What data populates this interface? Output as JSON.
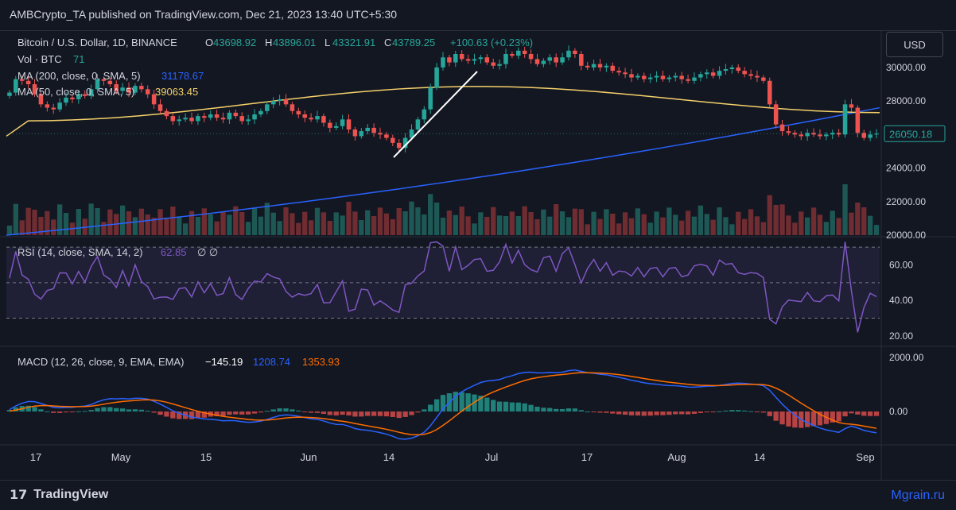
{
  "header": {
    "publisher_text": "AMBCrypto_TA published on TradingView.com, Dec 21, 2023 13:40 UTC+5:30"
  },
  "currency_button": "USD",
  "legend": {
    "symbol": "Bitcoin / U.S. Dollar, 1D, BINANCE",
    "o_label": "O",
    "o_value": "43698.92",
    "h_label": "H",
    "h_value": "43896.01",
    "l_label": "L",
    "l_value": "43321.91",
    "c_label": "C",
    "c_value": "43789.25",
    "change": "+100.63 (+0.23%)",
    "vol_label": "Vol · BTC",
    "vol_value": "71",
    "ma200_label": "MA (200, close, 0, SMA, 5)",
    "ma200_value": "31178.67",
    "ma50_label": "MA (50, close, 0, SMA, 5)",
    "ma50_value": "39063.45"
  },
  "rsi_legend": {
    "label": "RSI (14, close, SMA, 14, 2)",
    "value": "62.85",
    "extra": "∅ ∅"
  },
  "macd_legend": {
    "label": "MACD (12, 26, close, 9, EMA, EMA)",
    "hist": "−145.19",
    "macd": "1208.74",
    "signal": "1353.93"
  },
  "price_badge": "26050.18",
  "footer": {
    "brand": "TradingView",
    "watermark": "Mgrain.ru"
  },
  "colors": {
    "up": "#26a69a",
    "down": "#ef5350",
    "ma200": "#2962ff",
    "ma50": "#f5d16a",
    "rsi": "#7e57c2",
    "macd": "#2962ff",
    "signal": "#ff6d00"
  },
  "chart_data": [
    {
      "type": "candlestick",
      "title": "Bitcoin / U.S. Dollar, 1D, BINANCE",
      "x_ticks": [
        "17",
        "May",
        "15",
        "Jun",
        "14",
        "Jul",
        "17",
        "Aug",
        "14",
        "Sep"
      ],
      "y_ticks": [
        "20000.00",
        "22000.00",
        "24000.00",
        "26000.00",
        "28000.00",
        "30000.00"
      ],
      "ylim": [
        20000,
        30800
      ],
      "close_series": [
        28500,
        29300,
        29200,
        29000,
        28400,
        27800,
        27600,
        27500,
        27900,
        28200,
        28100,
        28400,
        28300,
        28700,
        29300,
        29200,
        29000,
        28600,
        28800,
        28500,
        28900,
        28700,
        28400,
        27800,
        27400,
        27100,
        26800,
        26900,
        27000,
        26800,
        27100,
        27000,
        27200,
        27000,
        26900,
        27300,
        27100,
        26800,
        26900,
        27200,
        27400,
        27800,
        28000,
        28100,
        27800,
        27400,
        27200,
        27000,
        26900,
        27100,
        26700,
        26400,
        26500,
        26900,
        26300,
        25900,
        26200,
        26400,
        26100,
        26000,
        25800,
        25500,
        25200,
        25800,
        26300,
        26900,
        27500,
        28800,
        30000,
        30600,
        30300,
        30800,
        30500,
        30400,
        30500,
        30600,
        30300,
        30100,
        30200,
        30800,
        30700,
        31000,
        30800,
        30500,
        30200,
        30400,
        30600,
        30300,
        30600,
        31000,
        30800,
        30100,
        30000,
        30200,
        30000,
        30100,
        29800,
        29700,
        29600,
        29400,
        29500,
        29300,
        29400,
        29500,
        29300,
        29400,
        29500,
        29300,
        29200,
        29400,
        29600,
        29700,
        29500,
        29800,
        29900,
        30000,
        29800,
        29600,
        29500,
        29400,
        29200,
        27800,
        26600,
        26200,
        26100,
        26000,
        25900,
        26100,
        26000,
        25900,
        26000,
        26100,
        26000,
        27800,
        27600,
        26100,
        25800,
        26000,
        26050
      ],
      "ma200": [
        20000,
        27600
      ],
      "ma50": [
        25900,
        28500
      ],
      "volume": "relative bars shown"
    },
    {
      "type": "line",
      "title": "RSI (14, close, SMA, 14, 2)",
      "y_ticks": [
        "20.00",
        "40.00",
        "60.00"
      ],
      "ylim": [
        15,
        75
      ],
      "bands": [
        30,
        50,
        70
      ],
      "last_value": 62.85
    },
    {
      "type": "line",
      "title": "MACD (12, 26, close, 9, EMA, EMA)",
      "y_ticks": [
        "0.00",
        "2000.00"
      ],
      "series": [
        {
          "name": "MACD",
          "last": 1208.74
        },
        {
          "name": "Signal",
          "last": 1353.93
        },
        {
          "name": "Histogram",
          "last": -145.19
        }
      ]
    }
  ]
}
